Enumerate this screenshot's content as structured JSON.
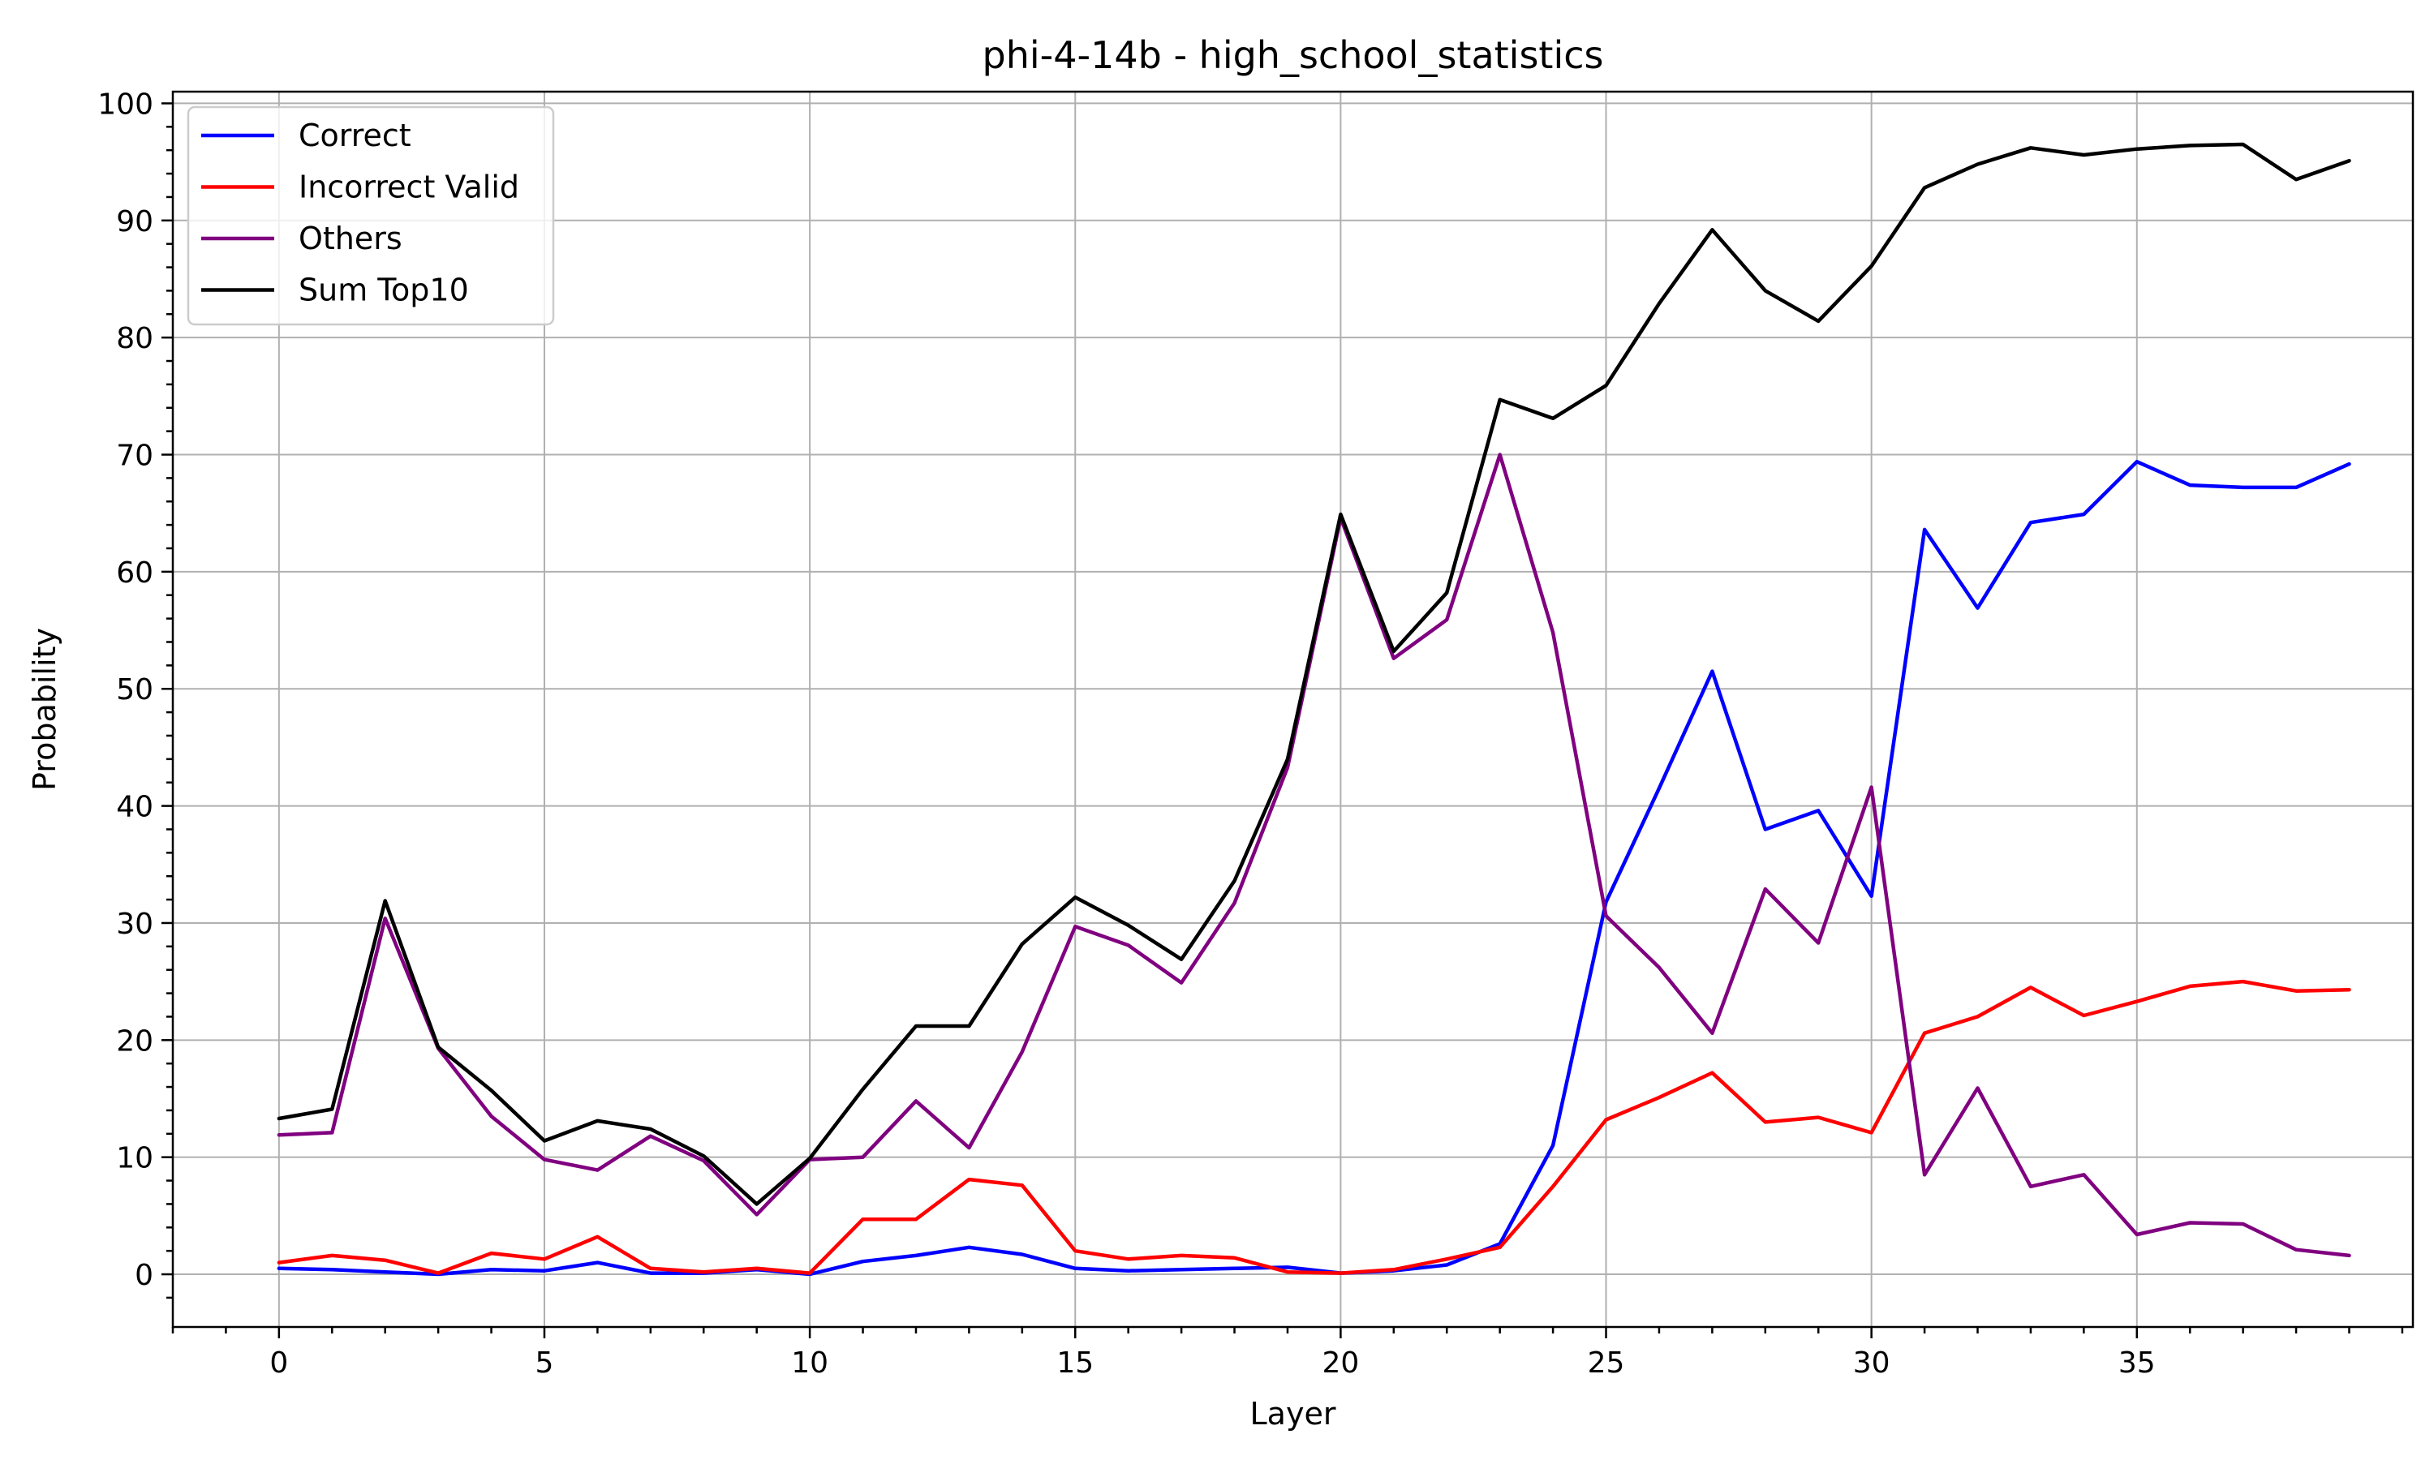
{
  "chart_data": {
    "type": "line",
    "title": "phi-4-14b - high_school_statistics",
    "xlabel": "Layer",
    "ylabel": "Probability",
    "xlim": [
      -2,
      40.2
    ],
    "ylim": [
      -4.5,
      101
    ],
    "xticks": [
      0,
      5,
      10,
      15,
      20,
      25,
      30,
      35
    ],
    "yticks": [
      0,
      10,
      20,
      30,
      40,
      50,
      60,
      70,
      80,
      90,
      100
    ],
    "grid": true,
    "legend_position": "top-left",
    "x": [
      0,
      1,
      2,
      3,
      4,
      5,
      6,
      7,
      8,
      9,
      10,
      11,
      12,
      13,
      14,
      15,
      16,
      17,
      18,
      19,
      20,
      21,
      22,
      23,
      24,
      25,
      26,
      27,
      28,
      29,
      30,
      31,
      32,
      33,
      34,
      35,
      36,
      37,
      38,
      39
    ],
    "series": [
      {
        "name": "Correct",
        "color": "#0000ff",
        "values": [
          0.5,
          0.4,
          0.2,
          0.0,
          0.4,
          0.3,
          1.0,
          0.1,
          0.1,
          0.4,
          0.0,
          1.1,
          1.6,
          2.3,
          1.7,
          0.5,
          0.3,
          0.4,
          0.5,
          0.6,
          0.1,
          0.3,
          0.8,
          2.6,
          11.0,
          31.8,
          41.5,
          51.5,
          38.0,
          39.6,
          32.3,
          63.6,
          56.9,
          64.2,
          64.9,
          69.4,
          67.4,
          67.2,
          67.2,
          69.2
        ]
      },
      {
        "name": "Incorrect Valid",
        "color": "#ff0000",
        "values": [
          1.0,
          1.6,
          1.2,
          0.1,
          1.8,
          1.3,
          3.2,
          0.5,
          0.2,
          0.5,
          0.1,
          4.7,
          4.7,
          8.1,
          7.6,
          2.0,
          1.3,
          1.6,
          1.4,
          0.2,
          0.1,
          0.4,
          1.3,
          2.3,
          7.5,
          13.2,
          15.1,
          17.2,
          13.0,
          13.4,
          12.1,
          20.6,
          22.0,
          24.5,
          22.1,
          23.3,
          24.6,
          25.0,
          24.2,
          24.3
        ]
      },
      {
        "name": "Others",
        "color": "#800080",
        "values": [
          11.9,
          12.1,
          30.4,
          19.3,
          13.5,
          9.8,
          8.9,
          11.8,
          9.7,
          5.1,
          9.8,
          10.0,
          14.8,
          10.8,
          19.0,
          29.7,
          28.1,
          24.9,
          31.7,
          43.3,
          64.6,
          52.6,
          55.9,
          70.0,
          54.8,
          30.6,
          26.2,
          20.6,
          32.9,
          28.3,
          41.6,
          8.5,
          15.9,
          7.5,
          8.5,
          3.4,
          4.4,
          4.3,
          2.1,
          1.6
        ]
      },
      {
        "name": "Sum Top10",
        "color": "#000000",
        "values": [
          13.3,
          14.1,
          31.9,
          19.4,
          15.7,
          11.4,
          13.1,
          12.4,
          10.1,
          6.0,
          9.9,
          15.8,
          21.2,
          21.2,
          28.2,
          32.2,
          29.8,
          26.9,
          33.6,
          44.0,
          64.9,
          53.2,
          58.2,
          74.7,
          73.1,
          75.9,
          82.9,
          89.2,
          84.0,
          81.4,
          86.1,
          92.8,
          94.8,
          96.2,
          95.6,
          96.1,
          96.4,
          96.5,
          93.5,
          95.1
        ]
      }
    ]
  }
}
